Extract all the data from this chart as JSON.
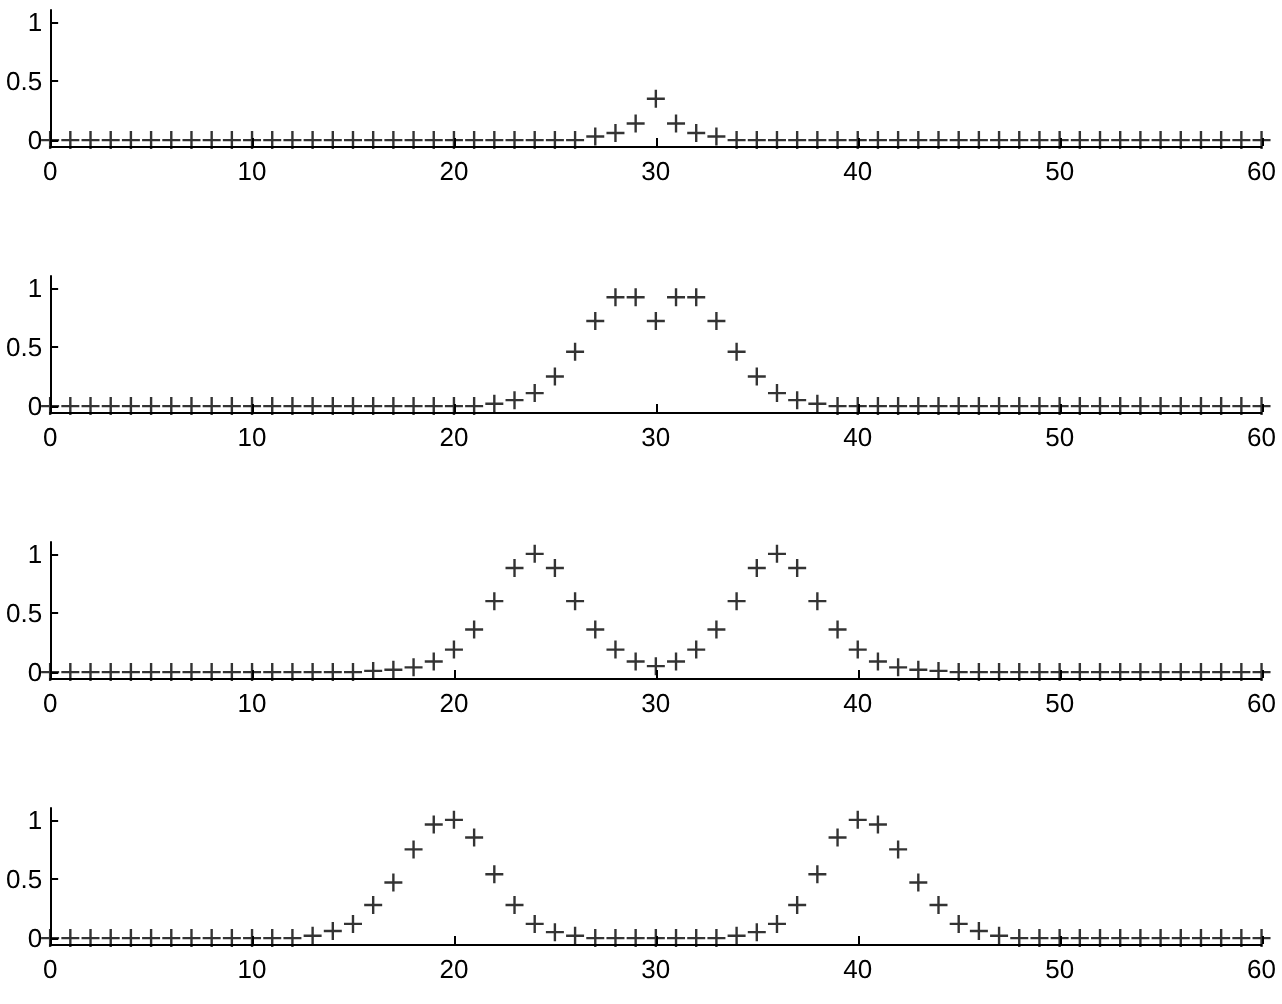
{
  "chart_data": [
    {
      "type": "scatter",
      "marker": "cross",
      "grid": false,
      "x": [
        0,
        1,
        2,
        3,
        4,
        5,
        6,
        7,
        8,
        9,
        10,
        11,
        12,
        13,
        14,
        15,
        16,
        17,
        18,
        19,
        20,
        21,
        22,
        23,
        24,
        25,
        26,
        27,
        28,
        29,
        30,
        31,
        32,
        33,
        34,
        35,
        36,
        37,
        38,
        39,
        40,
        41,
        42,
        43,
        44,
        45,
        46,
        47,
        48,
        49,
        50,
        51,
        52,
        53,
        54,
        55,
        56,
        57,
        58,
        59,
        60
      ],
      "series": [
        {
          "color": "#000000",
          "values": [
            0,
            0,
            0,
            0,
            0,
            0,
            0,
            0,
            0,
            0,
            0,
            0,
            0,
            0,
            0,
            0,
            0,
            0,
            0,
            0,
            0,
            0,
            0,
            0,
            0,
            0,
            0,
            0.03,
            0.06,
            0.14,
            0.35,
            0.14,
            0.06,
            0.03,
            0,
            0,
            0,
            0,
            0,
            0,
            0,
            0,
            0,
            0,
            0,
            0,
            0,
            0,
            0,
            0,
            0,
            0,
            0,
            0,
            0,
            0,
            0,
            0,
            0,
            0,
            0
          ]
        }
      ],
      "xlim": [
        0,
        60
      ],
      "xticks": [
        0,
        10,
        20,
        30,
        40,
        50,
        60
      ],
      "ylim": [
        -0.05,
        1.1
      ],
      "yticks": [
        0,
        0.5,
        1
      ]
    },
    {
      "type": "scatter",
      "marker": "cross",
      "grid": false,
      "x": [
        0,
        1,
        2,
        3,
        4,
        5,
        6,
        7,
        8,
        9,
        10,
        11,
        12,
        13,
        14,
        15,
        16,
        17,
        18,
        19,
        20,
        21,
        22,
        23,
        24,
        25,
        26,
        27,
        28,
        29,
        30,
        31,
        32,
        33,
        34,
        35,
        36,
        37,
        38,
        39,
        40,
        41,
        42,
        43,
        44,
        45,
        46,
        47,
        48,
        49,
        50,
        51,
        52,
        53,
        54,
        55,
        56,
        57,
        58,
        59,
        60
      ],
      "series": [
        {
          "color": "#000000",
          "values": [
            0,
            0,
            0,
            0,
            0,
            0,
            0,
            0,
            0,
            0,
            0,
            0,
            0,
            0,
            0,
            0,
            0,
            0,
            0,
            0,
            0,
            0,
            0.02,
            0.05,
            0.11,
            0.25,
            0.46,
            0.72,
            0.92,
            0.92,
            0.72,
            0.92,
            0.92,
            0.72,
            0.46,
            0.25,
            0.11,
            0.05,
            0.02,
            0,
            0,
            0,
            0,
            0,
            0,
            0,
            0,
            0,
            0,
            0,
            0,
            0,
            0,
            0,
            0,
            0,
            0,
            0,
            0,
            0,
            0
          ]
        }
      ],
      "xlim": [
        0,
        60
      ],
      "xticks": [
        0,
        10,
        20,
        30,
        40,
        50,
        60
      ],
      "ylim": [
        -0.05,
        1.1
      ],
      "yticks": [
        0,
        0.5,
        1
      ]
    },
    {
      "type": "scatter",
      "marker": "cross",
      "grid": false,
      "x": [
        0,
        1,
        2,
        3,
        4,
        5,
        6,
        7,
        8,
        9,
        10,
        11,
        12,
        13,
        14,
        15,
        16,
        17,
        18,
        19,
        20,
        21,
        22,
        23,
        24,
        25,
        26,
        27,
        28,
        29,
        30,
        31,
        32,
        33,
        34,
        35,
        36,
        37,
        38,
        39,
        40,
        41,
        42,
        43,
        44,
        45,
        46,
        47,
        48,
        49,
        50,
        51,
        52,
        53,
        54,
        55,
        56,
        57,
        58,
        59,
        60
      ],
      "series": [
        {
          "color": "#000000",
          "values": [
            0,
            0,
            0,
            0,
            0,
            0,
            0,
            0,
            0,
            0,
            0,
            0,
            0,
            0,
            0,
            0,
            0.01,
            0.02,
            0.04,
            0.09,
            0.19,
            0.36,
            0.6,
            0.88,
            1,
            0.88,
            0.6,
            0.36,
            0.19,
            0.09,
            0.05,
            0.09,
            0.19,
            0.36,
            0.6,
            0.88,
            1,
            0.88,
            0.6,
            0.36,
            0.19,
            0.09,
            0.04,
            0.02,
            0.01,
            0,
            0,
            0,
            0,
            0,
            0,
            0,
            0,
            0,
            0,
            0,
            0,
            0,
            0,
            0,
            0
          ]
        }
      ],
      "xlim": [
        0,
        60
      ],
      "xticks": [
        0,
        10,
        20,
        30,
        40,
        50,
        60
      ],
      "ylim": [
        -0.05,
        1.1
      ],
      "yticks": [
        0,
        0.5,
        1
      ]
    },
    {
      "type": "scatter",
      "marker": "cross",
      "grid": false,
      "x": [
        0,
        1,
        2,
        3,
        4,
        5,
        6,
        7,
        8,
        9,
        10,
        11,
        12,
        13,
        14,
        15,
        16,
        17,
        18,
        19,
        20,
        21,
        22,
        23,
        24,
        25,
        26,
        27,
        28,
        29,
        30,
        31,
        32,
        33,
        34,
        35,
        36,
        37,
        38,
        39,
        40,
        41,
        42,
        43,
        44,
        45,
        46,
        47,
        48,
        49,
        50,
        51,
        52,
        53,
        54,
        55,
        56,
        57,
        58,
        59,
        60
      ],
      "series": [
        {
          "color": "#000000",
          "values": [
            0,
            0,
            0,
            0,
            0,
            0,
            0,
            0,
            0,
            0,
            0,
            0,
            0,
            0.02,
            0.06,
            0.12,
            0.28,
            0.47,
            0.75,
            0.96,
            1,
            0.85,
            0.54,
            0.28,
            0.12,
            0.05,
            0.02,
            0,
            0,
            0,
            0,
            0,
            0,
            0,
            0.02,
            0.05,
            0.12,
            0.28,
            0.54,
            0.85,
            1,
            0.96,
            0.75,
            0.47,
            0.28,
            0.12,
            0.06,
            0.02,
            0,
            0,
            0,
            0,
            0,
            0,
            0,
            0,
            0,
            0,
            0,
            0,
            0
          ]
        }
      ],
      "xlim": [
        0,
        60
      ],
      "xticks": [
        0,
        10,
        20,
        30,
        40,
        50,
        60
      ],
      "ylim": [
        -0.05,
        1.1
      ],
      "yticks": [
        0,
        0.5,
        1
      ]
    }
  ]
}
